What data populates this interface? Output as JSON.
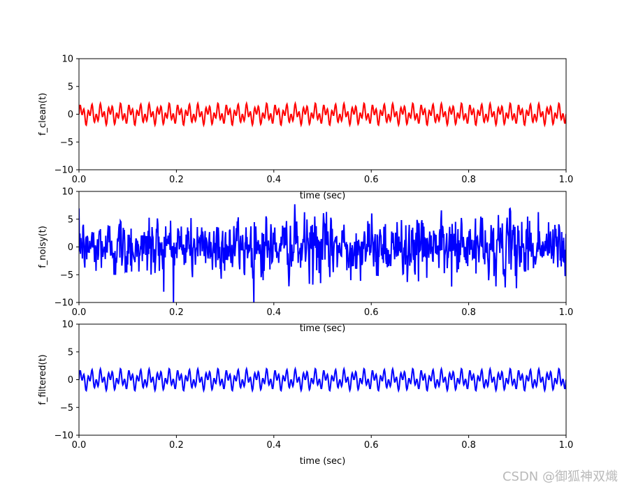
{
  "chart_data": [
    {
      "type": "line",
      "ylabel": "f_clean(t)",
      "xlabel": "time (sec)",
      "xlim": [
        0,
        1
      ],
      "ylim": [
        -10,
        10
      ],
      "xticks": [
        "0.0",
        "0.2",
        "0.4",
        "0.6",
        "0.8",
        "1.0"
      ],
      "yticks": [
        "10",
        "5",
        "0",
        "−5",
        "−10"
      ],
      "color": "#ff0000",
      "series": [
        {
          "components": [
            {
              "amplitude": 1,
              "frequency_hz": 50
            },
            {
              "amplitude": 1,
              "frequency_hz": 120
            }
          ]
        }
      ]
    },
    {
      "type": "line",
      "ylabel": "f_noisy(t)",
      "xlabel": "time (sec)",
      "xlim": [
        0,
        1
      ],
      "ylim": [
        -10,
        10
      ],
      "xticks": [
        "0.0",
        "0.2",
        "0.4",
        "0.6",
        "0.8",
        "1.0"
      ],
      "yticks": [
        "10",
        "5",
        "0",
        "−5",
        "−10"
      ],
      "color": "#0000ff",
      "series": [
        {
          "components": [
            {
              "amplitude": 1,
              "frequency_hz": 50
            },
            {
              "amplitude": 1,
              "frequency_hz": 120
            }
          ],
          "noise_std": 2.5,
          "approx_y_range": [
            -8.5,
            8.2
          ]
        }
      ]
    },
    {
      "type": "line",
      "ylabel": "f_filtered(t)",
      "xlabel": "time (sec)",
      "xlim": [
        0,
        1
      ],
      "ylim": [
        -10,
        10
      ],
      "xticks": [
        "0.0",
        "0.2",
        "0.4",
        "0.6",
        "0.8",
        "1.0"
      ],
      "yticks": [
        "10",
        "5",
        "0",
        "−5",
        "−10"
      ],
      "color": "#0000ff",
      "series": [
        {
          "components": [
            {
              "amplitude": 1,
              "frequency_hz": 50
            },
            {
              "amplitude": 1,
              "frequency_hz": 120
            }
          ]
        }
      ]
    }
  ],
  "watermark": "CSDN @御狐神双熾"
}
